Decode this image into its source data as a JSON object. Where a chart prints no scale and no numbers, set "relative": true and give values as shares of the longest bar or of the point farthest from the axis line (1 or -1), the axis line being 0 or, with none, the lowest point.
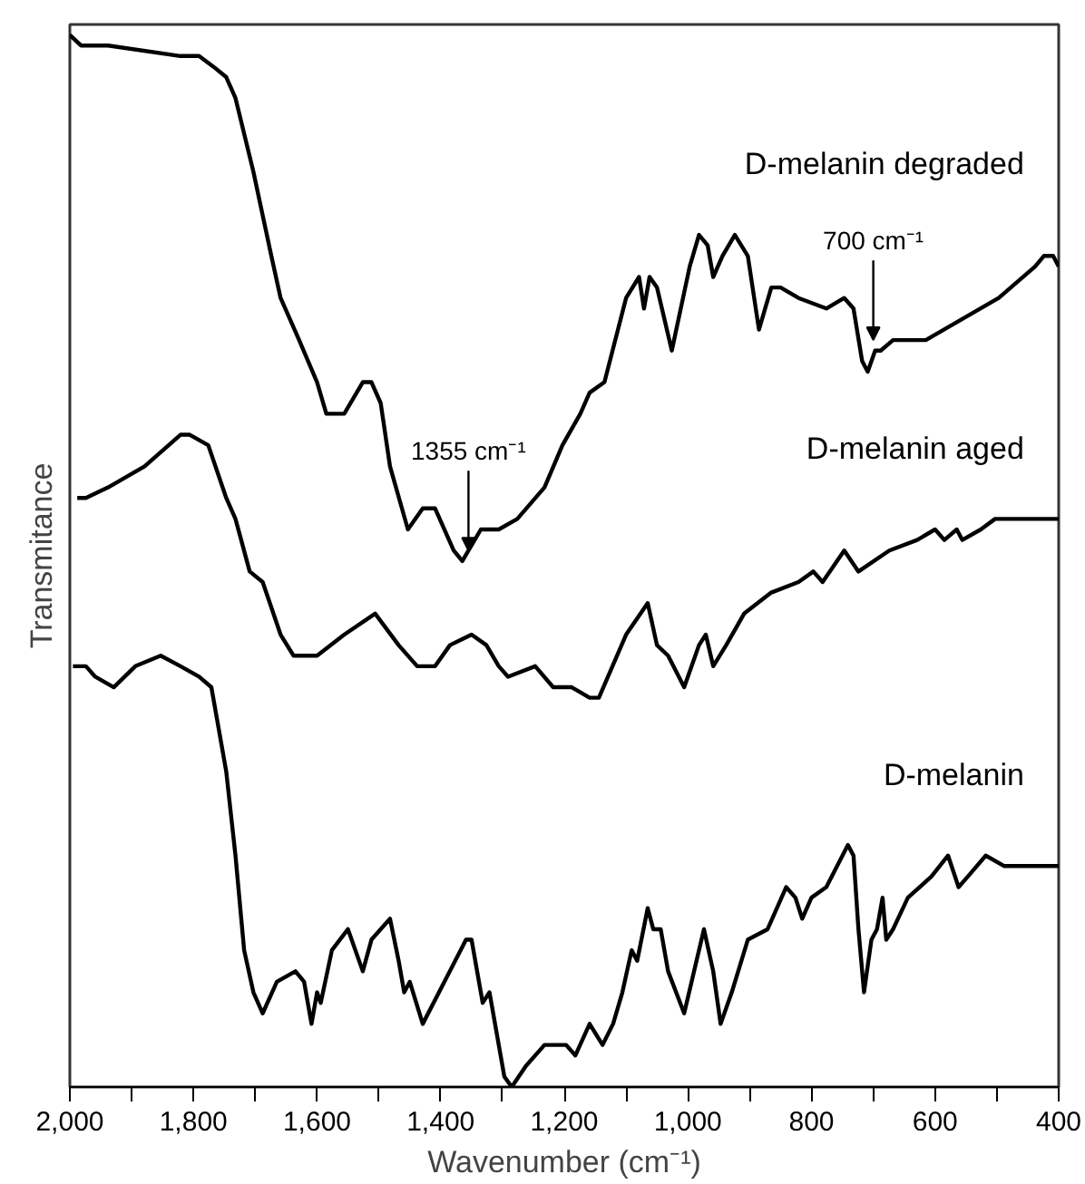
{
  "chart_data": {
    "type": "line",
    "relative": true,
    "xlabel": "Wavenumber (cm⁻¹)",
    "ylabel": "Transmitance",
    "xlim": [
      2000,
      400
    ],
    "xticks": [
      {
        "value": 2000,
        "label": "2,000"
      },
      {
        "value": 1900,
        "label": null
      },
      {
        "value": 1800,
        "label": "1,800"
      },
      {
        "value": 1700,
        "label": null
      },
      {
        "value": 1600,
        "label": "1,600"
      },
      {
        "value": 1500,
        "label": null
      },
      {
        "value": 1400,
        "label": "1,400"
      },
      {
        "value": 1300,
        "label": null
      },
      {
        "value": 1200,
        "label": "1,200"
      },
      {
        "value": 1100,
        "label": null
      },
      {
        "value": 1000,
        "label": "1,000"
      },
      {
        "value": 900,
        "label": null
      },
      800,
      {
        "value": 700,
        "label": null
      },
      600,
      {
        "value": 500,
        "label": null
      },
      400
    ],
    "grid": false,
    "marker": "none",
    "line_style": "solid",
    "annotations": [
      {
        "text": "1355 cm⁻¹",
        "x": 1355,
        "y": 0.51
      },
      {
        "text": "700 cm⁻¹",
        "x": 700,
        "y": 0.71
      }
    ],
    "series": [
      {
        "name": "D-melanin degraded",
        "color": "#000000",
        "x": [
          2000,
          1982,
          1938,
          1821,
          1791,
          1768,
          1747,
          1732,
          1703,
          1674,
          1659,
          1629,
          1600,
          1585,
          1556,
          1526,
          1512,
          1497,
          1482,
          1453,
          1429,
          1409,
          1379,
          1365,
          1335,
          1306,
          1276,
          1232,
          1203,
          1174,
          1159,
          1135,
          1100,
          1079,
          1071,
          1062,
          1050,
          1026,
          997,
          982,
          968,
          959,
          944,
          924,
          903,
          885,
          865,
          850,
          821,
          776,
          747,
          732,
          718,
          709,
          697,
          688,
          668,
          615,
          556,
          497,
          438,
          424,
          409,
          400
        ],
        "values": [
          1.0,
          0.99,
          0.99,
          0.98,
          0.98,
          0.97,
          0.96,
          0.94,
          0.87,
          0.79,
          0.75,
          0.71,
          0.67,
          0.64,
          0.64,
          0.67,
          0.67,
          0.65,
          0.59,
          0.53,
          0.55,
          0.55,
          0.51,
          0.5,
          0.53,
          0.53,
          0.54,
          0.57,
          0.61,
          0.64,
          0.66,
          0.67,
          0.75,
          0.77,
          0.74,
          0.77,
          0.76,
          0.7,
          0.78,
          0.81,
          0.8,
          0.77,
          0.79,
          0.81,
          0.79,
          0.72,
          0.76,
          0.76,
          0.75,
          0.74,
          0.75,
          0.74,
          0.69,
          0.68,
          0.7,
          0.7,
          0.71,
          0.71,
          0.73,
          0.75,
          0.78,
          0.79,
          0.79,
          0.78
        ]
      },
      {
        "name": "D-melanin aged",
        "color": "#000000",
        "x": [
          1988,
          1974,
          1938,
          1879,
          1821,
          1806,
          1776,
          1747,
          1732,
          1709,
          1688,
          1659,
          1638,
          1600,
          1556,
          1506,
          1468,
          1438,
          1409,
          1385,
          1350,
          1326,
          1306,
          1291,
          1247,
          1218,
          1188,
          1159,
          1144,
          1100,
          1065,
          1050,
          1032,
          1006,
          982,
          971,
          959,
          938,
          909,
          865,
          821,
          797,
          782,
          747,
          724,
          674,
          629,
          600,
          585,
          565,
          556,
          526,
          503,
          400
        ],
        "values": [
          0.56,
          0.56,
          0.57,
          0.59,
          0.62,
          0.62,
          0.61,
          0.56,
          0.54,
          0.49,
          0.48,
          0.43,
          0.41,
          0.41,
          0.43,
          0.45,
          0.42,
          0.4,
          0.4,
          0.42,
          0.43,
          0.42,
          0.4,
          0.39,
          0.4,
          0.38,
          0.38,
          0.37,
          0.37,
          0.43,
          0.46,
          0.42,
          0.41,
          0.38,
          0.42,
          0.43,
          0.4,
          0.42,
          0.45,
          0.47,
          0.48,
          0.49,
          0.48,
          0.51,
          0.49,
          0.51,
          0.52,
          0.53,
          0.52,
          0.53,
          0.52,
          0.53,
          0.54,
          0.54
        ]
      },
      {
        "name": "D-melanin",
        "color": "#000000",
        "x": [
          1995,
          1974,
          1959,
          1929,
          1894,
          1853,
          1821,
          1791,
          1771,
          1747,
          1732,
          1718,
          1703,
          1688,
          1665,
          1635,
          1621,
          1609,
          1600,
          1594,
          1576,
          1550,
          1526,
          1512,
          1482,
          1468,
          1459,
          1450,
          1429,
          1394,
          1359,
          1350,
          1332,
          1321,
          1297,
          1285,
          1262,
          1232,
          1197,
          1182,
          1159,
          1138,
          1121,
          1106,
          1091,
          1082,
          1065,
          1056,
          1044,
          1032,
          1006,
          974,
          959,
          947,
          929,
          903,
          871,
          841,
          826,
          815,
          800,
          776,
          741,
          732,
          724,
          715,
          703,
          694,
          685,
          679,
          668,
          644,
          606,
          579,
          562,
          547,
          518,
          488,
          409,
          400
        ],
        "values": [
          0.4,
          0.4,
          0.39,
          0.38,
          0.4,
          0.41,
          0.4,
          0.39,
          0.38,
          0.3,
          0.22,
          0.13,
          0.09,
          0.07,
          0.1,
          0.11,
          0.1,
          0.06,
          0.09,
          0.08,
          0.13,
          0.15,
          0.11,
          0.14,
          0.16,
          0.12,
          0.09,
          0.1,
          0.06,
          0.1,
          0.14,
          0.14,
          0.08,
          0.09,
          0.01,
          0.0,
          0.02,
          0.04,
          0.04,
          0.03,
          0.06,
          0.04,
          0.06,
          0.09,
          0.13,
          0.12,
          0.17,
          0.15,
          0.15,
          0.11,
          0.07,
          0.15,
          0.11,
          0.06,
          0.09,
          0.14,
          0.15,
          0.19,
          0.18,
          0.16,
          0.18,
          0.19,
          0.23,
          0.22,
          0.15,
          0.09,
          0.14,
          0.15,
          0.18,
          0.14,
          0.15,
          0.18,
          0.2,
          0.22,
          0.19,
          0.2,
          0.22,
          0.21,
          0.21,
          0.21
        ]
      }
    ]
  }
}
